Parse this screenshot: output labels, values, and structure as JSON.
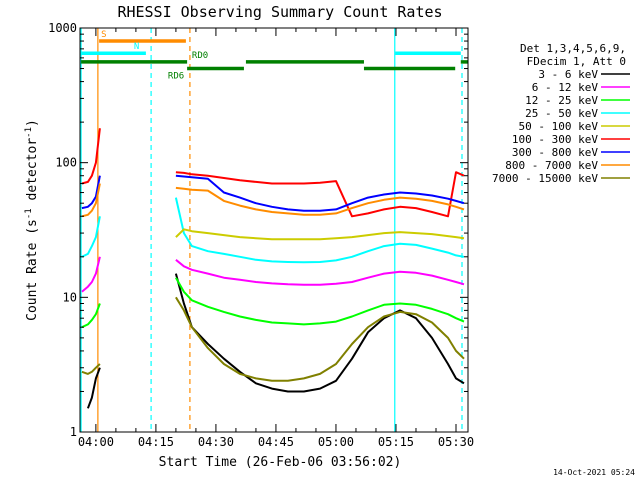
{
  "chart_data": {
    "type": "line",
    "title": "RHESSI Observing Summary Count Rates",
    "xlabel": "Start Time (26-Feb-06 03:56:02)",
    "ylabel_main": "Count Rate (s",
    "ylabel_sup1": "-1",
    "ylabel_mid": " detector",
    "ylabel_sup2": "-1",
    "ylabel_end": ")",
    "x_unit": "minutes",
    "xlim": [
      236.03,
      333.0
    ],
    "ylim": [
      1,
      1000
    ],
    "yscale": "log",
    "x_ticks": [
      {
        "value": 240,
        "label": "04:00"
      },
      {
        "value": 255,
        "label": "04:15"
      },
      {
        "value": 270,
        "label": "04:30"
      },
      {
        "value": 285,
        "label": "04:45"
      },
      {
        "value": 300,
        "label": "05:00"
      },
      {
        "value": 315,
        "label": "05:15"
      },
      {
        "value": 330,
        "label": "05:30"
      }
    ],
    "y_ticks": [
      {
        "value": 1,
        "label": "1"
      },
      {
        "value": 10,
        "label": "10"
      },
      {
        "value": 100,
        "label": "100"
      },
      {
        "value": 1000,
        "label": "1000"
      }
    ],
    "legend_header": [
      "Det 1,3,4,5,6,9,",
      "FDecim 1, Att 0"
    ],
    "legend_placement": "right",
    "timestamp": "14-Oct-2021 05:24",
    "series": [
      {
        "name": "3 - 6 keV",
        "color": "#000000",
        "x": [
          236.5,
          238,
          239,
          240,
          241,
          259,
          260,
          262,
          264,
          268,
          272,
          276,
          280,
          284,
          288,
          292,
          296,
          300,
          304,
          308,
          312,
          316,
          320,
          324,
          328,
          330,
          332
        ],
        "y": [
          null,
          1.5,
          1.8,
          2.5,
          3.0,
          null,
          15,
          9,
          6,
          4.5,
          3.5,
          2.8,
          2.3,
          2.1,
          2.0,
          2.0,
          2.1,
          2.4,
          3.5,
          5.5,
          7,
          8,
          7,
          5,
          3.2,
          2.5,
          2.3
        ]
      },
      {
        "name": "6 - 12 keV",
        "color": "#ff00ff",
        "x": [
          236.5,
          238,
          239,
          240,
          241,
          259,
          260,
          262,
          264,
          268,
          272,
          276,
          280,
          284,
          288,
          292,
          296,
          300,
          304,
          308,
          312,
          316,
          320,
          324,
          328,
          330,
          332
        ],
        "y": [
          11,
          12,
          13,
          15,
          20,
          null,
          19,
          17,
          16,
          15,
          14,
          13.5,
          13,
          12.7,
          12.5,
          12.4,
          12.4,
          12.6,
          13,
          14,
          15,
          15.5,
          15.2,
          14.5,
          13.5,
          13,
          12.5
        ]
      },
      {
        "name": "12 - 25 keV",
        "color": "#00ff00",
        "x": [
          236.5,
          238,
          239,
          240,
          241,
          259,
          260,
          262,
          264,
          268,
          272,
          276,
          280,
          284,
          288,
          292,
          296,
          300,
          304,
          308,
          312,
          316,
          320,
          324,
          328,
          330,
          332
        ],
        "y": [
          6,
          6.3,
          6.8,
          7.5,
          9,
          null,
          14,
          11,
          9.5,
          8.5,
          7.8,
          7.2,
          6.8,
          6.5,
          6.4,
          6.3,
          6.4,
          6.6,
          7.2,
          8,
          8.8,
          9,
          8.8,
          8.2,
          7.5,
          7,
          6.6
        ]
      },
      {
        "name": "25 - 50 keV",
        "color": "#00ffff",
        "x": [
          236.5,
          238,
          239,
          240,
          241,
          259,
          260,
          262,
          264,
          268,
          272,
          276,
          280,
          284,
          288,
          292,
          296,
          300,
          304,
          308,
          312,
          316,
          320,
          324,
          328,
          330,
          332
        ],
        "y": [
          20,
          21,
          24,
          28,
          40,
          null,
          55,
          30,
          24,
          22,
          21,
          20,
          19,
          18.5,
          18.3,
          18.2,
          18.3,
          18.8,
          20,
          22,
          24,
          25,
          24.5,
          23,
          21.5,
          20.5,
          20
        ]
      },
      {
        "name": "50 - 100 keV",
        "color": "#cccc00",
        "x": [
          236.5,
          238,
          239,
          240,
          241,
          259,
          260,
          262,
          264,
          268,
          272,
          276,
          280,
          284,
          288,
          292,
          296,
          300,
          304,
          308,
          312,
          316,
          320,
          324,
          328,
          330,
          332
        ],
        "y": [
          null,
          null,
          null,
          null,
          null,
          null,
          28,
          32,
          31,
          30,
          29,
          28,
          27.5,
          27,
          27,
          27,
          27,
          27.5,
          28,
          29,
          30,
          30.5,
          30,
          29.5,
          28.5,
          28,
          27.5
        ]
      },
      {
        "name": "100 - 300 keV",
        "color": "#ff0000",
        "x": [
          236.5,
          238,
          239,
          240,
          241,
          259,
          260,
          262,
          264,
          268,
          272,
          276,
          280,
          284,
          288,
          292,
          296,
          300,
          304,
          308,
          312,
          316,
          320,
          324,
          328,
          330,
          332
        ],
        "y": [
          70,
          72,
          80,
          100,
          180,
          null,
          85,
          84,
          82,
          80,
          77,
          74,
          72,
          70,
          70,
          70,
          71,
          73,
          40,
          42,
          45,
          47,
          46,
          43,
          40,
          85,
          80
        ]
      },
      {
        "name": "300 - 800 keV",
        "color": "#0000ff",
        "x": [
          236.5,
          238,
          239,
          240,
          241,
          259,
          260,
          262,
          264,
          268,
          272,
          276,
          280,
          284,
          288,
          292,
          296,
          300,
          304,
          308,
          312,
          316,
          320,
          324,
          328,
          330,
          332
        ],
        "y": [
          46,
          47,
          50,
          56,
          80,
          null,
          80,
          79,
          78,
          76,
          60,
          55,
          50,
          47,
          45,
          44,
          44,
          45,
          50,
          55,
          58,
          60,
          59,
          57,
          54,
          52,
          50
        ]
      },
      {
        "name": "800 - 7000 keV",
        "color": "#ff8c00",
        "x": [
          236.5,
          238,
          239,
          240,
          241,
          259,
          260,
          262,
          264,
          268,
          272,
          276,
          280,
          284,
          288,
          292,
          296,
          300,
          304,
          308,
          312,
          316,
          320,
          324,
          328,
          330,
          332
        ],
        "y": [
          40,
          41,
          44,
          50,
          70,
          null,
          65,
          64,
          63,
          62,
          52,
          48,
          45,
          43,
          42,
          41,
          41,
          42,
          46,
          50,
          53,
          55,
          54,
          52,
          49,
          47,
          45
        ]
      },
      {
        "name": "7000 - 15000 keV",
        "color": "#808000",
        "x": [
          236.5,
          238,
          239,
          240,
          241,
          259,
          260,
          262,
          264,
          268,
          272,
          276,
          280,
          284,
          288,
          292,
          296,
          300,
          304,
          308,
          312,
          316,
          320,
          324,
          328,
          330,
          332
        ],
        "y": [
          2.8,
          2.7,
          2.8,
          3.0,
          3.2,
          null,
          10,
          8,
          6,
          4.2,
          3.2,
          2.7,
          2.5,
          2.4,
          2.4,
          2.5,
          2.7,
          3.2,
          4.5,
          6,
          7.2,
          7.8,
          7.5,
          6.5,
          5,
          4,
          3.5
        ]
      }
    ],
    "vertical_lines": [
      {
        "x": 236.3,
        "color": "#00ffff",
        "dashed": false
      },
      {
        "x": 240.5,
        "color": "#ff8c00",
        "dashed": false
      },
      {
        "x": 253.8,
        "color": "#00ffff",
        "dashed": true
      },
      {
        "x": 263.5,
        "color": "#ff8c00",
        "dashed": true
      },
      {
        "x": 314.7,
        "color": "#00ffff",
        "dashed": false
      },
      {
        "x": 331.5,
        "color": "#00ffff",
        "dashed": true
      }
    ],
    "state_bars": [
      {
        "label": "S",
        "color": "#ff8c00",
        "y": 800,
        "segments": [
          [
            240.8,
            262.5
          ]
        ]
      },
      {
        "label": "N",
        "color": "#00ffff",
        "y": 650,
        "segments": [
          [
            236.3,
            252.5
          ],
          [
            314.8,
            331.2
          ]
        ]
      },
      {
        "label": "RD0",
        "color": "#008000",
        "y": 560,
        "segments": [
          [
            236.3,
            262.8
          ],
          [
            277.5,
            307.0
          ],
          [
            331.2,
            333.0
          ]
        ]
      },
      {
        "label": "RD6",
        "color": "#008000",
        "y": 500,
        "segments": [
          [
            262.8,
            277.0
          ],
          [
            307.0,
            329.8
          ]
        ]
      }
    ]
  }
}
